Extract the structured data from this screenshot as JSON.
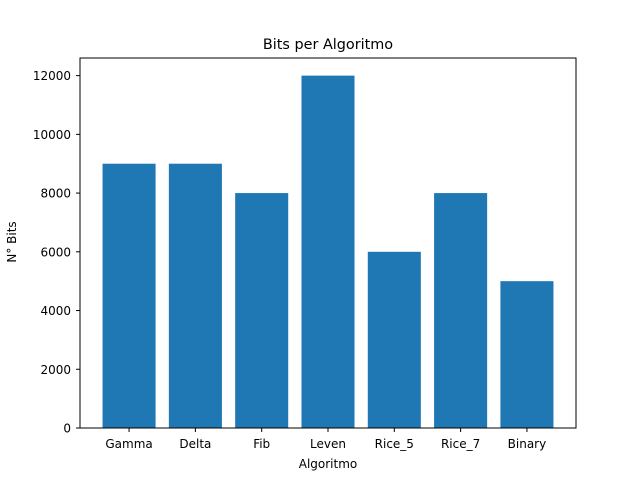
{
  "chart_data": {
    "type": "bar",
    "title": "Bits per Algoritmo",
    "xlabel": "Algoritmo",
    "ylabel": "N° Bits",
    "categories": [
      "Gamma",
      "Delta",
      "Fib",
      "Leven",
      "Rice_5",
      "Rice_7",
      "Binary"
    ],
    "values": [
      9000,
      9000,
      8000,
      12000,
      6000,
      8000,
      5000
    ],
    "ylim": [
      0,
      12000
    ],
    "yticks": [
      0,
      2000,
      4000,
      6000,
      8000,
      10000,
      12000
    ],
    "grid": false,
    "bar_color": "#1f77b4"
  }
}
